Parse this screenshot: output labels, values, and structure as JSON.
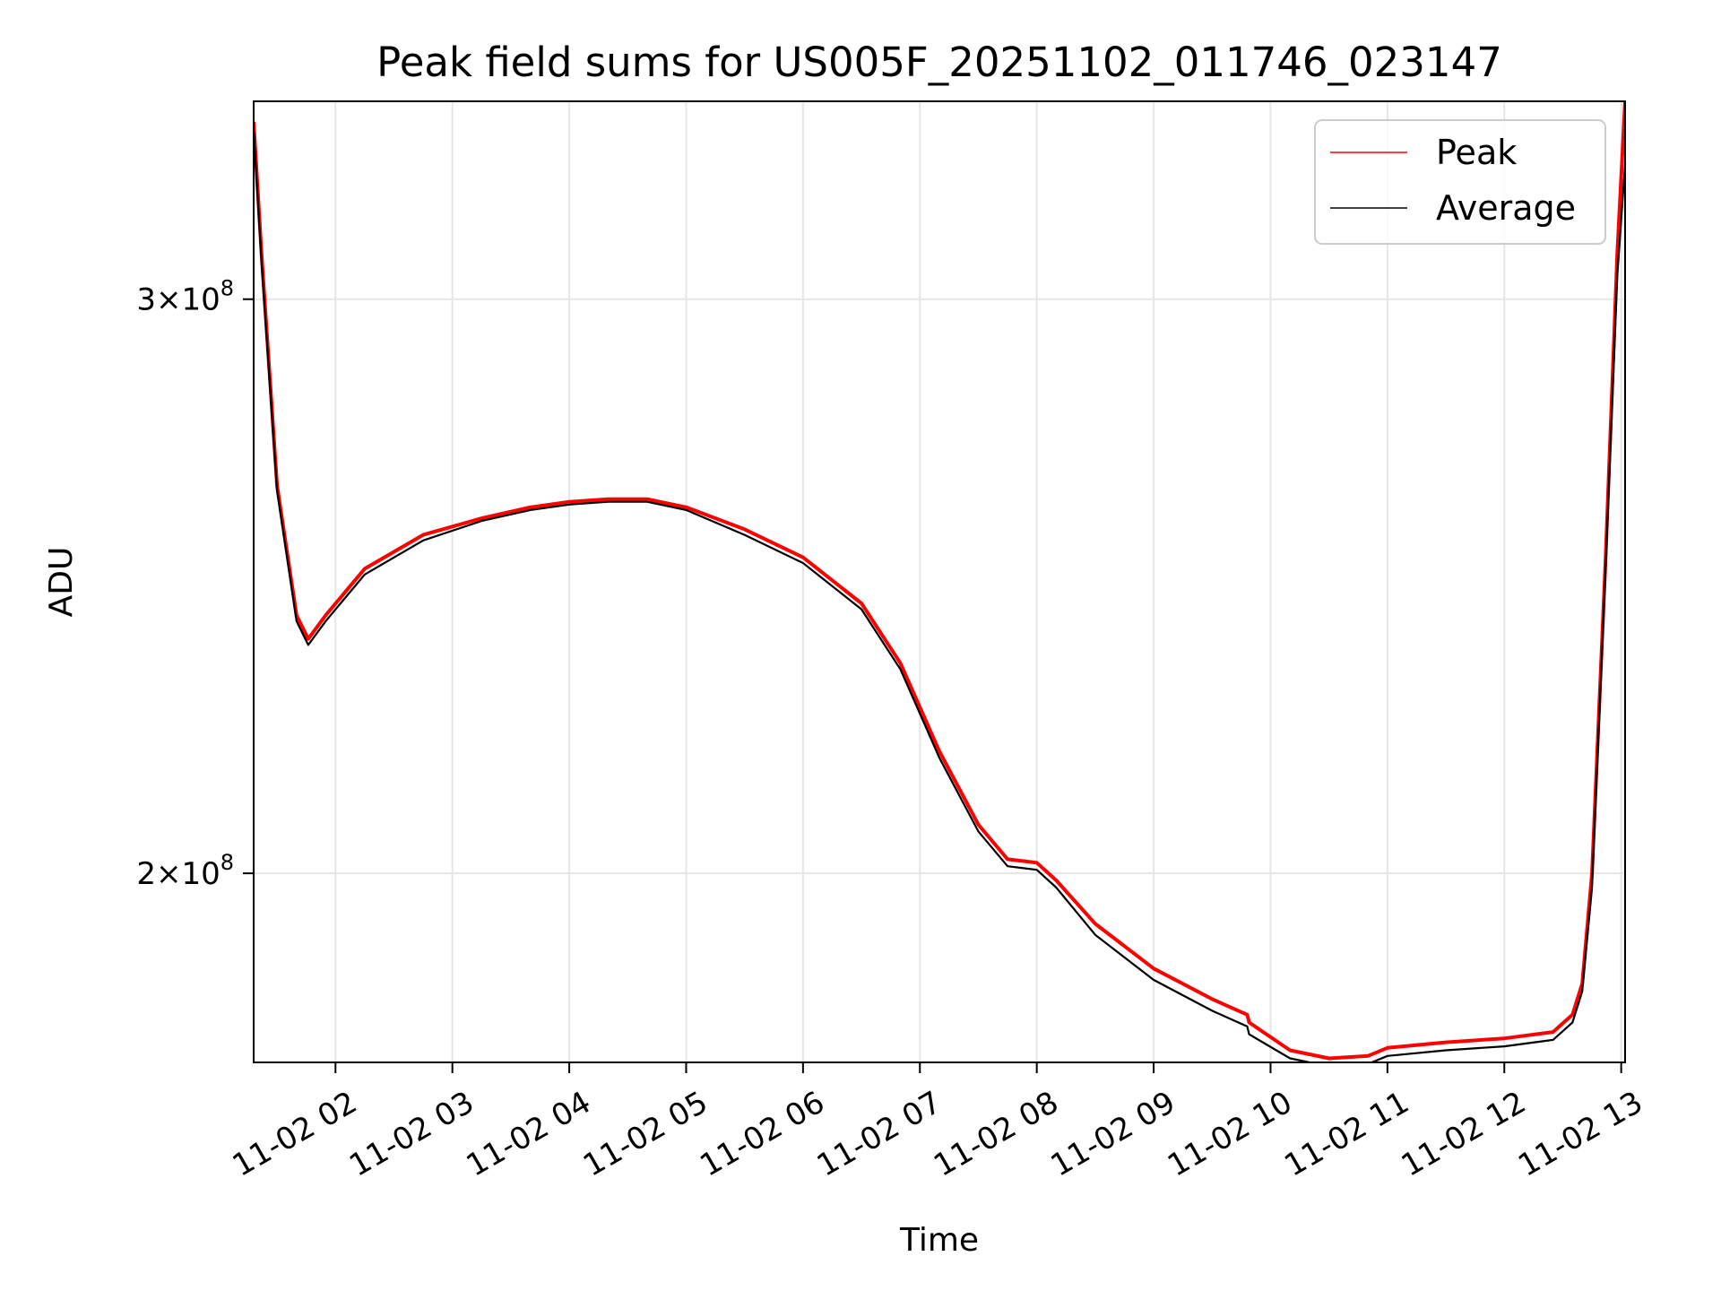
{
  "chart_data": {
    "type": "line",
    "title": "Peak field sums for US005F_20251102_011746_023147",
    "xlabel": "Time",
    "ylabel": "ADU",
    "yscale": "log",
    "grid": true,
    "legend_position": "top-right",
    "xlim": [
      "2025-11-02 01:18",
      "2025-11-02 13:02"
    ],
    "ylim": [
      175000000,
      345000000
    ],
    "x_ticks": [
      "11-02 02",
      "11-02 03",
      "11-02 04",
      "11-02 05",
      "11-02 06",
      "11-02 07",
      "11-02 08",
      "11-02 09",
      "11-02 10",
      "11-02 11",
      "11-02 12",
      "11-02 13"
    ],
    "y_ticks": [
      {
        "value": 200000000,
        "mantissa": "2",
        "base": "10",
        "exponent": "8"
      },
      {
        "value": 300000000,
        "mantissa": "3",
        "base": "10",
        "exponent": "8"
      }
    ],
    "x": [
      "2025-11-02 01:18",
      "2025-11-02 01:22",
      "2025-11-02 01:30",
      "2025-11-02 01:40",
      "2025-11-02 01:46",
      "2025-11-02 01:55",
      "2025-11-02 02:15",
      "2025-11-02 02:45",
      "2025-11-02 03:15",
      "2025-11-02 03:40",
      "2025-11-02 04:00",
      "2025-11-02 04:20",
      "2025-11-02 04:40",
      "2025-11-02 05:00",
      "2025-11-02 05:30",
      "2025-11-02 06:00",
      "2025-11-02 06:30",
      "2025-11-02 06:50",
      "2025-11-02 07:10",
      "2025-11-02 07:30",
      "2025-11-02 07:45",
      "2025-11-02 08:00",
      "2025-11-02 08:10",
      "2025-11-02 08:30",
      "2025-11-02 09:00",
      "2025-11-02 09:30",
      "2025-11-02 09:48",
      "2025-11-02 09:49",
      "2025-11-02 10:10",
      "2025-11-02 10:30",
      "2025-11-02 10:50",
      "2025-11-02 11:00",
      "2025-11-02 11:30",
      "2025-11-02 12:00",
      "2025-11-02 12:25",
      "2025-11-02 12:35",
      "2025-11-02 12:40",
      "2025-11-02 12:45",
      "2025-11-02 12:52",
      "2025-11-02 12:58",
      "2025-11-02 13:02"
    ],
    "series": [
      {
        "name": "Peak",
        "color": "#ff0000",
        "values": [
          340000000,
          310000000,
          263000000,
          240000000,
          236000000,
          240000000,
          248000000,
          254000000,
          257000000,
          259000000,
          260000000,
          260500000,
          260500000,
          259000000,
          255000000,
          250000000,
          242000000,
          232000000,
          218000000,
          207000000,
          202000000,
          201500000,
          199000000,
          193000000,
          187000000,
          183000000,
          181000000,
          180000000,
          176500000,
          175500000,
          175800000,
          176800000,
          177500000,
          178000000,
          178800000,
          181000000,
          185000000,
          200000000,
          250000000,
          310000000,
          345000000
        ]
      },
      {
        "name": "Average",
        "color": "#000000",
        "values": [
          338000000,
          308000000,
          262000000,
          239000000,
          235000000,
          239000000,
          247000000,
          253000000,
          256500000,
          258500000,
          259500000,
          260000000,
          260000000,
          258500000,
          254000000,
          249000000,
          241000000,
          231000000,
          217000000,
          206000000,
          201000000,
          200500000,
          198000000,
          191500000,
          185500000,
          181500000,
          179500000,
          178500000,
          175500000,
          174500000,
          174800000,
          175800000,
          176500000,
          177000000,
          177800000,
          180000000,
          184000000,
          198000000,
          248000000,
          305000000,
          330000000
        ]
      }
    ]
  }
}
